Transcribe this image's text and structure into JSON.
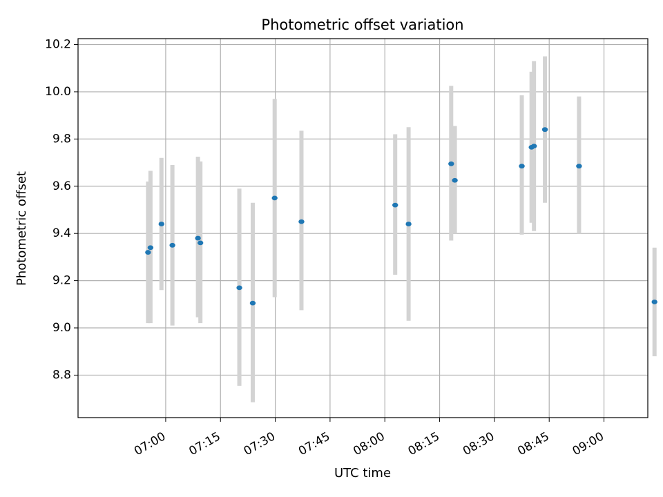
{
  "chart_data": {
    "type": "scatter",
    "title": "Photometric offset variation",
    "xlabel": "UTC time",
    "ylabel": "Photometric offset",
    "grid": true,
    "xlim": [
      "06:36",
      "09:12"
    ],
    "ylim": [
      8.62,
      10.225
    ],
    "x_ticks": [
      "07:00",
      "07:15",
      "07:30",
      "07:45",
      "08:00",
      "08:15",
      "08:30",
      "08:45",
      "09:00"
    ],
    "y_ticks": [
      "8.8",
      "9.0",
      "9.2",
      "9.4",
      "9.6",
      "9.8",
      "10.0",
      "10.2"
    ],
    "colors": {
      "points": "#1f77b4",
      "error_bars": "#d3d3d3",
      "grid": "#b0b0b0"
    },
    "points": [
      {
        "x": "06:55:10",
        "y": 9.32,
        "ylo": 9.02,
        "yhi": 9.62
      },
      {
        "x": "06:55:50",
        "y": 9.34,
        "ylo": 9.02,
        "yhi": 9.665
      },
      {
        "x": "06:58:50",
        "y": 9.44,
        "ylo": 9.16,
        "yhi": 9.72
      },
      {
        "x": "07:01:50",
        "y": 9.35,
        "ylo": 9.01,
        "yhi": 9.69
      },
      {
        "x": "07:08:50",
        "y": 9.38,
        "ylo": 9.045,
        "yhi": 9.725
      },
      {
        "x": "07:09:30",
        "y": 9.36,
        "ylo": 9.02,
        "yhi": 9.705
      },
      {
        "x": "07:20:10",
        "y": 9.17,
        "ylo": 8.755,
        "yhi": 9.59
      },
      {
        "x": "07:23:50",
        "y": 9.105,
        "ylo": 8.685,
        "yhi": 9.53
      },
      {
        "x": "07:29:50",
        "y": 9.55,
        "ylo": 9.13,
        "yhi": 9.97
      },
      {
        "x": "07:37:10",
        "y": 9.45,
        "ylo": 9.075,
        "yhi": 9.835
      },
      {
        "x": "08:02:50",
        "y": 9.52,
        "ylo": 9.225,
        "yhi": 9.82
      },
      {
        "x": "08:06:30",
        "y": 9.44,
        "ylo": 9.03,
        "yhi": 9.85
      },
      {
        "x": "08:18:10",
        "y": 9.695,
        "ylo": 9.37,
        "yhi": 10.025
      },
      {
        "x": "08:19:10",
        "y": 9.625,
        "ylo": 9.4,
        "yhi": 9.855
      },
      {
        "x": "08:37:30",
        "y": 9.685,
        "ylo": 9.395,
        "yhi": 9.985
      },
      {
        "x": "08:40:10",
        "y": 9.765,
        "ylo": 9.445,
        "yhi": 10.085
      },
      {
        "x": "08:40:50",
        "y": 9.77,
        "ylo": 9.41,
        "yhi": 10.13
      },
      {
        "x": "08:43:50",
        "y": 9.84,
        "ylo": 9.53,
        "yhi": 10.15
      },
      {
        "x": "08:53:10",
        "y": 9.685,
        "ylo": 9.4,
        "yhi": 9.98
      },
      {
        "x": "09:13:50",
        "y": 9.11,
        "ylo": 8.88,
        "yhi": 9.34
      }
    ]
  }
}
